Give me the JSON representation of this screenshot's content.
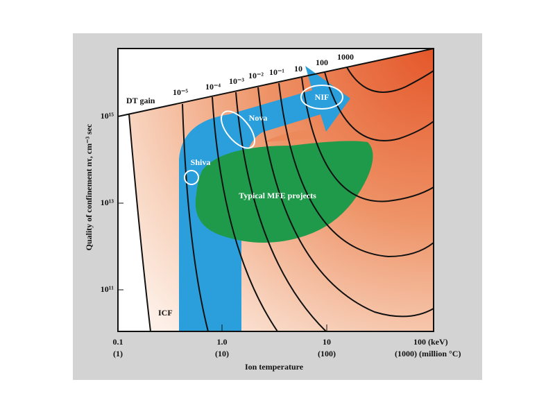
{
  "header": {
    "y_axis_title": "Quality of confinement nτ, cm⁻³ sec",
    "x_axis_title": "Ion temperature",
    "dt_gain": "DT gain",
    "icf": "ICF"
  },
  "x_ticks": [
    {
      "label": "0.1",
      "sub": "(1)"
    },
    {
      "label": "1.0",
      "sub": "(10)"
    },
    {
      "label": "10",
      "sub": "(100)"
    },
    {
      "label": "100 (keV)",
      "sub": "(1000) (million °C)"
    }
  ],
  "y_ticks": [
    "10¹⁵",
    "10¹³",
    "10¹¹"
  ],
  "gain_labels": [
    "10⁻⁵",
    "10⁻⁴",
    "10⁻³",
    "10⁻²",
    "10⁻¹",
    "10",
    "100",
    "1000"
  ],
  "regions": {
    "shiva": "Shiva",
    "nova": "Nova",
    "nif": "NIF",
    "mfe": "Typical MFE projects"
  }
}
